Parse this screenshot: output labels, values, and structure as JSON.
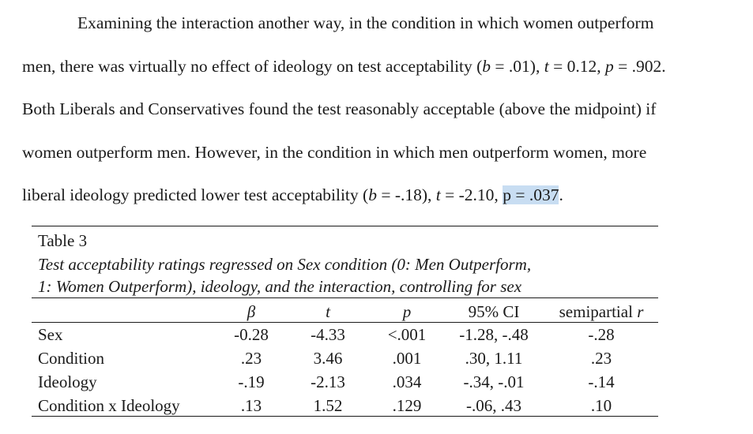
{
  "paragraph": {
    "line1": "Examining the interaction another way, in the condition in which women outperform",
    "line2": {
      "a": "men, there was virtually no effect of ideology on test acceptability (",
      "b_var": "b",
      "b_val": " = .01), ",
      "t_var": "t",
      "t_val": " = 0.12, ",
      "p_var": "p",
      "p_val": " = .902."
    },
    "line3": "Both Liberals and Conservatives found the test reasonably acceptable (above the midpoint) if",
    "line4": "women outperform men. However, in the condition in which men outperform women, more",
    "line5": {
      "a": "liberal ideology predicted lower test acceptability (",
      "b_var": "b",
      "b_val": " = -.18), ",
      "t_var": "t",
      "t_val": " = -2.10, ",
      "p_hl": "p = .037",
      "end": "."
    }
  },
  "table": {
    "label": "Table 3",
    "caption_line1": "Test acceptability ratings regressed on Sex condition (0: Men Outperform,",
    "caption_line2": "1: Women Outperform), ideology, and the interaction, controlling for sex",
    "headers": {
      "beta": "β",
      "t": "t",
      "p": "p",
      "ci": "95% CI",
      "sr": "semipartial",
      "sr_var": "r"
    },
    "rows": [
      {
        "label": "Sex",
        "beta": "-0.28",
        "t": "-4.33",
        "p": "<.001",
        "ci": "-1.28, -.48",
        "sr": "-.28"
      },
      {
        "label": "Condition",
        "beta": ".23",
        "t": "3.46",
        "p": ".001",
        "ci": ".30, 1.11",
        "sr": ".23"
      },
      {
        "label": "Ideology",
        "beta": "-.19",
        "t": "-2.13",
        "p": ".034",
        "ci": "-.34, -.01",
        "sr": "-.14"
      },
      {
        "label": "Condition x Ideology",
        "beta": ".13",
        "t": "1.52",
        "p": ".129",
        "ci": "-.06, .43",
        "sr": ".10"
      }
    ]
  }
}
